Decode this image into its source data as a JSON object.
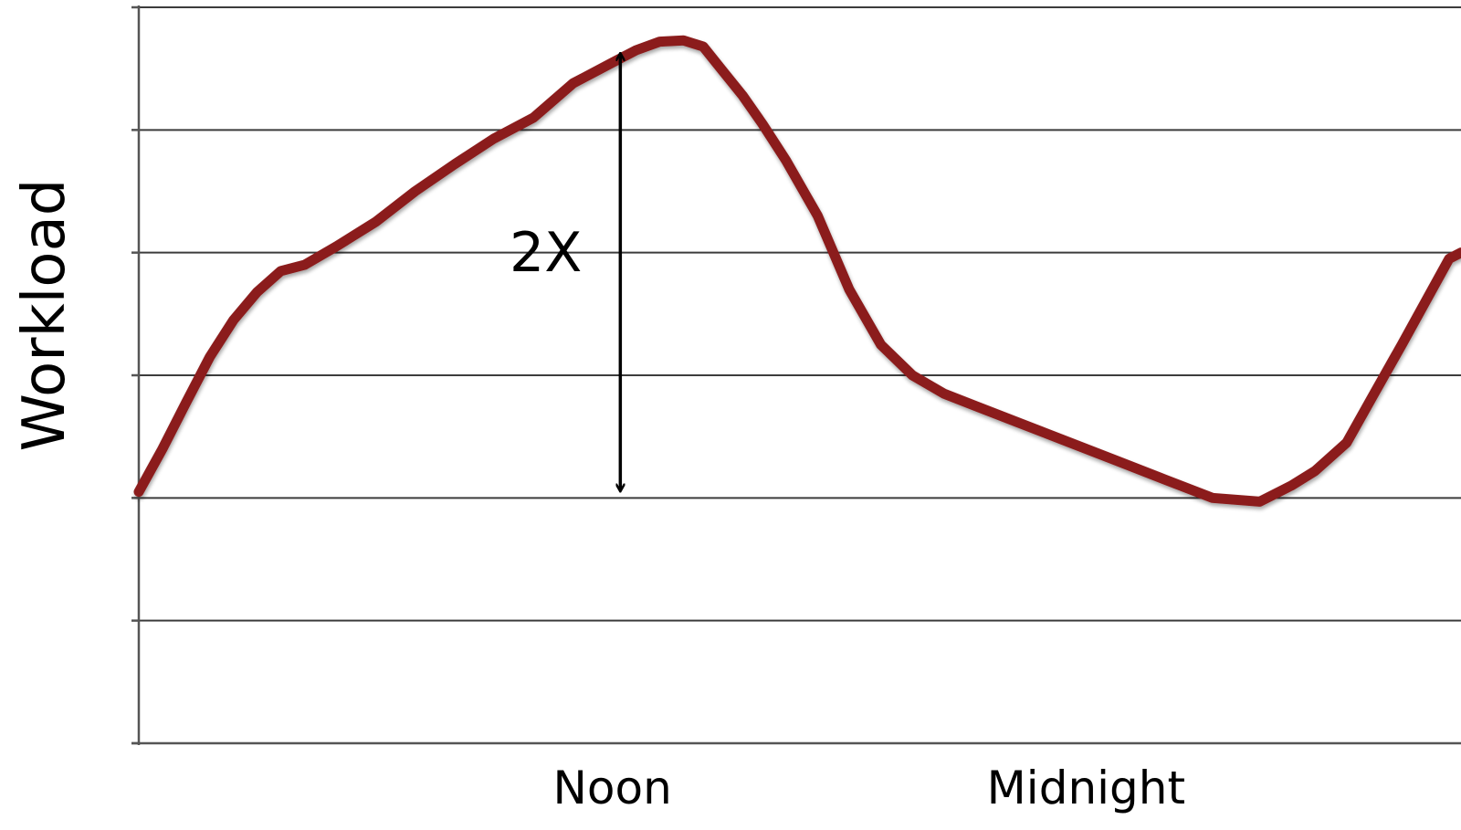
{
  "chart_data": {
    "type": "line",
    "title": "",
    "xlabel": "",
    "ylabel": "Workload",
    "x_ticks": [
      {
        "label": "Noon",
        "x": 12
      },
      {
        "label": "Midnight",
        "x": 24
      }
    ],
    "xlim": [
      0,
      33.5
    ],
    "ylim": [
      0,
      6
    ],
    "grid": true,
    "y_axis_tick_labels": false,
    "series": [
      {
        "color": "#8b1a1a",
        "x": [
          0,
          0.6,
          1.2,
          1.8,
          2.4,
          3.0,
          3.6,
          4.2,
          5.0,
          6.0,
          7.0,
          8.0,
          9.0,
          10.0,
          11.0,
          12.0,
          12.6,
          13.2,
          13.8,
          14.3,
          14.8,
          15.3,
          15.8,
          16.4,
          17.2,
          18.0,
          18.8,
          19.6,
          20.4,
          21.2,
          22.4,
          23.6,
          24.8,
          26.0,
          27.2,
          28.4,
          29.2,
          29.8,
          30.6,
          31.3,
          32.0,
          32.6,
          33.2,
          33.5
        ],
        "y": [
          2.05,
          2.4,
          2.78,
          3.15,
          3.45,
          3.68,
          3.85,
          3.9,
          4.05,
          4.25,
          4.5,
          4.72,
          4.93,
          5.1,
          5.38,
          5.55,
          5.65,
          5.72,
          5.73,
          5.68,
          5.48,
          5.28,
          5.05,
          4.75,
          4.3,
          3.7,
          3.25,
          3.0,
          2.85,
          2.75,
          2.6,
          2.45,
          2.3,
          2.15,
          2.0,
          1.97,
          2.1,
          2.22,
          2.45,
          2.85,
          3.25,
          3.6,
          3.95,
          4.0
        ]
      }
    ],
    "annotation": {
      "label": "2X",
      "x": 12.2,
      "y_from": 2.0,
      "y_to": 5.68
    }
  }
}
